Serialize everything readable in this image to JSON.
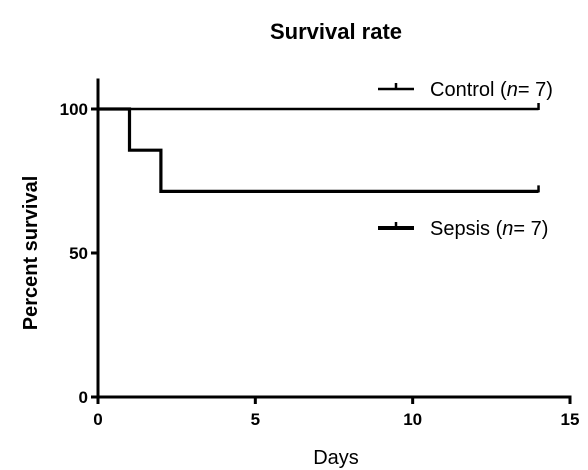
{
  "chart_data": {
    "type": "line",
    "step": true,
    "title": "Survival rate",
    "xlabel": "Days",
    "ylabel": "Percent survival",
    "xlim": [
      0,
      15
    ],
    "ylim": [
      0,
      110
    ],
    "xticks": [
      0,
      5,
      10,
      15
    ],
    "yticks": [
      0,
      50,
      100
    ],
    "xtick_labels": [
      "0",
      "5",
      "10",
      "15"
    ],
    "ytick_labels": [
      "0",
      "50",
      "100"
    ],
    "legend_placement": "right",
    "series": [
      {
        "name_prefix": "Control (",
        "name_italic": "n",
        "name_suffix": "= 7)",
        "line": "thin",
        "color": "#000000",
        "x": [
          0,
          14
        ],
        "y": [
          100,
          100
        ]
      },
      {
        "name_prefix": "Sepsis (",
        "name_italic": "n",
        "name_suffix": "= 7)",
        "line": "thick",
        "color": "#000000",
        "x": [
          0,
          1,
          1,
          2,
          2,
          14
        ],
        "y": [
          100,
          100,
          85.7,
          85.7,
          71.4,
          71.4
        ]
      }
    ]
  }
}
